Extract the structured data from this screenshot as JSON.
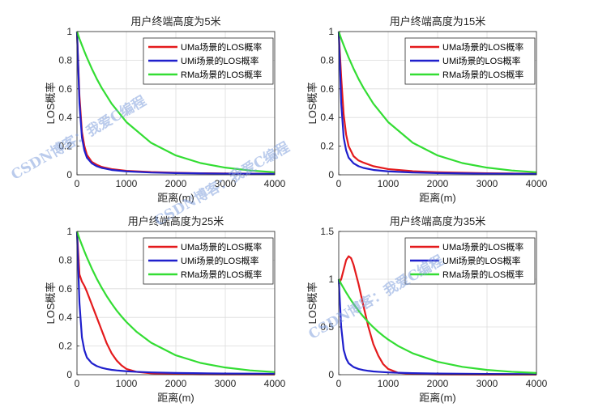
{
  "watermark": "CSDN博客：我爱C编程",
  "chart_data": [
    {
      "type": "line",
      "title": "用户终端高度为5米",
      "xlabel": "距离(m)",
      "ylabel": "LOS概率",
      "xlim": [
        0,
        4000
      ],
      "ylim": [
        0,
        1
      ],
      "xticks": [
        "0",
        "1000",
        "2000",
        "3000",
        "4000"
      ],
      "yticks": [
        "0",
        "0.2",
        "0.4",
        "0.6",
        "0.8",
        "1"
      ],
      "grid": true,
      "legend_position": "top-right",
      "x": [
        0,
        50,
        100,
        150,
        200,
        300,
        400,
        500,
        700,
        1000,
        1500,
        2000,
        2500,
        3000,
        3500,
        4000
      ],
      "series": [
        {
          "name": "UMa场景的LOS概率",
          "color": "#e41a1c",
          "values": [
            1.0,
            0.55,
            0.3,
            0.2,
            0.14,
            0.09,
            0.07,
            0.055,
            0.04,
            0.028,
            0.019,
            0.014,
            0.011,
            0.009,
            0.008,
            0.007
          ]
        },
        {
          "name": "UMi场景的LOS概率",
          "color": "#1f1fcc",
          "values": [
            1.0,
            0.5,
            0.26,
            0.17,
            0.12,
            0.08,
            0.06,
            0.048,
            0.034,
            0.024,
            0.016,
            0.012,
            0.01,
            0.008,
            0.007,
            0.006
          ]
        },
        {
          "name": "RMa场景的LOS概率",
          "color": "#33dd33",
          "values": [
            1.0,
            0.95,
            0.905,
            0.861,
            0.819,
            0.741,
            0.67,
            0.607,
            0.497,
            0.368,
            0.223,
            0.135,
            0.082,
            0.05,
            0.03,
            0.018
          ]
        }
      ]
    },
    {
      "type": "line",
      "title": "用户终端高度为15米",
      "xlabel": "距离(m)",
      "ylabel": "LOS概率",
      "xlim": [
        0,
        4000
      ],
      "ylim": [
        0,
        1
      ],
      "xticks": [
        "0",
        "1000",
        "2000",
        "3000",
        "4000"
      ],
      "yticks": [
        "0",
        "0.2",
        "0.4",
        "0.6",
        "0.8",
        "1"
      ],
      "grid": true,
      "legend_position": "top-right",
      "x": [
        0,
        50,
        100,
        150,
        200,
        300,
        400,
        500,
        700,
        1000,
        1500,
        2000,
        2500,
        3000,
        3500,
        4000
      ],
      "series": [
        {
          "name": "UMa场景的LOS概率",
          "color": "#e41a1c",
          "values": [
            1.0,
            0.68,
            0.42,
            0.28,
            0.2,
            0.13,
            0.1,
            0.085,
            0.06,
            0.04,
            0.025,
            0.018,
            0.014,
            0.011,
            0.009,
            0.008
          ]
        },
        {
          "name": "UMi场景的LOS概率",
          "color": "#1f1fcc",
          "values": [
            1.0,
            0.5,
            0.26,
            0.17,
            0.12,
            0.08,
            0.06,
            0.048,
            0.034,
            0.024,
            0.016,
            0.012,
            0.01,
            0.008,
            0.007,
            0.006
          ]
        },
        {
          "name": "RMa场景的LOS概率",
          "color": "#33dd33",
          "values": [
            1.0,
            0.95,
            0.905,
            0.861,
            0.819,
            0.741,
            0.67,
            0.607,
            0.497,
            0.368,
            0.223,
            0.135,
            0.082,
            0.05,
            0.03,
            0.018
          ]
        }
      ]
    },
    {
      "type": "line",
      "title": "用户终端高度为25米",
      "xlabel": "距离(m)",
      "ylabel": "LOS概率",
      "xlim": [
        0,
        4000
      ],
      "ylim": [
        0,
        1
      ],
      "xticks": [
        "0",
        "1000",
        "2000",
        "3000",
        "4000"
      ],
      "yticks": [
        "0",
        "0.2",
        "0.4",
        "0.6",
        "0.8",
        "1"
      ],
      "grid": true,
      "legend_position": "top-right",
      "x": [
        0,
        50,
        100,
        150,
        200,
        300,
        400,
        500,
        600,
        700,
        800,
        900,
        1000,
        1200,
        1500,
        2000,
        2500,
        3000,
        3500,
        4000
      ],
      "series": [
        {
          "name": "UMa场景的LOS概率",
          "color": "#e41a1c",
          "values": [
            1.0,
            0.7,
            0.65,
            0.62,
            0.58,
            0.49,
            0.4,
            0.31,
            0.22,
            0.15,
            0.1,
            0.065,
            0.04,
            0.02,
            0.01,
            0.005,
            0.003,
            0.002,
            0.002,
            0.001
          ]
        },
        {
          "name": "UMi场景的LOS概率",
          "color": "#1f1fcc",
          "values": [
            1.0,
            0.5,
            0.26,
            0.17,
            0.12,
            0.08,
            0.06,
            0.048,
            0.04,
            0.034,
            0.03,
            0.027,
            0.024,
            0.02,
            0.016,
            0.012,
            0.01,
            0.008,
            0.007,
            0.006
          ]
        },
        {
          "name": "RMa场景的LOS概率",
          "color": "#33dd33",
          "values": [
            1.0,
            0.95,
            0.905,
            0.861,
            0.819,
            0.741,
            0.67,
            0.607,
            0.549,
            0.497,
            0.449,
            0.407,
            0.368,
            0.301,
            0.223,
            0.135,
            0.082,
            0.05,
            0.03,
            0.018
          ]
        }
      ]
    },
    {
      "type": "line",
      "title": "用户终端高度为35米",
      "xlabel": "距离(m)",
      "ylabel": "LOS概率",
      "xlim": [
        0,
        4000
      ],
      "ylim": [
        0,
        1.5
      ],
      "xticks": [
        "0",
        "1000",
        "2000",
        "3000",
        "4000"
      ],
      "yticks": [
        "0",
        "0.5",
        "1",
        "1.5"
      ],
      "grid": true,
      "legend_position": "top-right",
      "x": [
        0,
        50,
        100,
        150,
        200,
        250,
        300,
        400,
        500,
        600,
        700,
        800,
        900,
        1000,
        1200,
        1500,
        2000,
        2500,
        3000,
        3500,
        4000
      ],
      "series": [
        {
          "name": "UMa场景的LOS概率",
          "color": "#e41a1c",
          "values": [
            0.95,
            1.0,
            1.1,
            1.2,
            1.24,
            1.22,
            1.15,
            0.95,
            0.72,
            0.5,
            0.32,
            0.2,
            0.11,
            0.06,
            0.02,
            0.008,
            0.003,
            0.002,
            0.001,
            0.001,
            0.001
          ]
        },
        {
          "name": "UMi场景的LOS概率",
          "color": "#1f1fcc",
          "values": [
            1.0,
            0.5,
            0.26,
            0.17,
            0.12,
            0.1,
            0.08,
            0.06,
            0.048,
            0.04,
            0.034,
            0.03,
            0.027,
            0.024,
            0.02,
            0.016,
            0.012,
            0.01,
            0.008,
            0.007,
            0.006
          ]
        },
        {
          "name": "RMa场景的LOS概率",
          "color": "#33dd33",
          "values": [
            1.0,
            0.95,
            0.905,
            0.861,
            0.819,
            0.779,
            0.741,
            0.67,
            0.607,
            0.549,
            0.497,
            0.449,
            0.407,
            0.368,
            0.301,
            0.223,
            0.135,
            0.082,
            0.05,
            0.03,
            0.018
          ]
        }
      ]
    }
  ]
}
